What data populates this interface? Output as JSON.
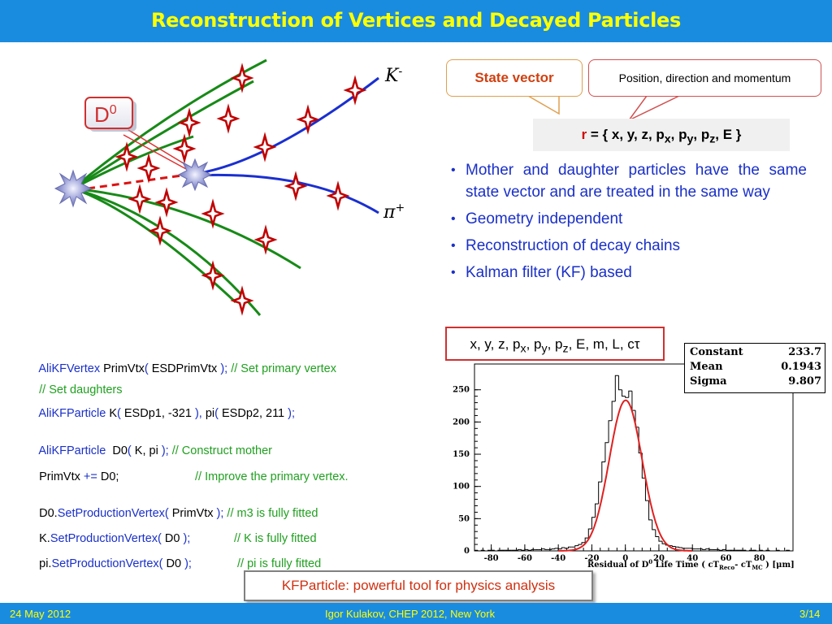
{
  "slide": {
    "title": "Reconstruction of Vertices and Decayed Particles",
    "footer": {
      "date": "24 May 2012",
      "author": "Igor Kulakov, CHEP 2012, New York",
      "page": "3/14"
    }
  },
  "diagram": {
    "mother_label": "D",
    "mother_label_sup": "0",
    "kaon_label": "K",
    "kaon_sup": "-",
    "pion_label": "π",
    "pion_sup": "+"
  },
  "callouts": {
    "state_vector": "State vector",
    "state_desc": "Position, direction and momentum"
  },
  "state_vector_formula": {
    "r": "r",
    "rest": " = { x, y, z, p",
    "px_sub": "x",
    "mid1": ", p",
    "py_sub": "y",
    "mid2": ", p",
    "pz_sub": "z",
    "end": ", E }"
  },
  "bullets": [
    "Mother and daughter particles have the same state vector and are treated in the same way",
    "Geometry independent",
    "Reconstruction of decay chains",
    "Kalman filter (KF) based"
  ],
  "params_box": {
    "a": "x, y, z, p",
    "px_sub": "x",
    "b": ", p",
    "py_sub": "y",
    "c": ", p",
    "pz_sub": "z",
    "d": ", E, m, L, cτ"
  },
  "code": [
    {
      "cls": "AliKFVertex",
      "t1": " PrimVtx",
      "p1": "( ",
      "t2": "ESDPrimVtx",
      "p2": " );",
      "comment": " // Set primary vertex"
    },
    {
      "comment": "// Set daughters"
    },
    {
      "cls": "AliKFParticle",
      "t1": " K",
      "p1": "( ",
      "t2": "ESDp1, -321",
      "p2": " ),",
      "t3": " pi",
      "p3": "( ",
      "t4": "ESDp2, 211",
      "p4": " );"
    },
    {
      "cls": "AliKFParticle",
      "t1": "  D0",
      "p1": "( ",
      "t2": "K, pi",
      "p2": " );",
      "comment": " // Construct mother"
    },
    {
      "t1": "PrimVtx",
      "op": " += ",
      "t2": "D0;",
      "comment": "// Improve the primary vertex."
    },
    {
      "t1": "D0.",
      "m": "SetProductionVertex(",
      "t2": " PrimVtx",
      "p2": " );",
      "comment": " // m3 is fully fitted"
    },
    {
      "t1": "K.",
      "m": "SetProductionVertex(",
      "t2": " D0",
      "p2": " );",
      "comment": "// K is fully fitted"
    },
    {
      "t1": "pi.",
      "m": "SetProductionVertex(",
      "t2": " D0",
      "p2": " );",
      "comment": "// pi is fully fitted"
    }
  ],
  "summary": "KFParticle: powerful tool for physics analysis",
  "fit_stats": [
    {
      "key": "Constant",
      "value": "233.7"
    },
    {
      "key": "Mean",
      "value": "0.1943"
    },
    {
      "key": "Sigma",
      "value": "9.807"
    }
  ],
  "chart_data": {
    "type": "bar",
    "xlabel": "Residual of D⁰ Life Time ( cT_Reco - cT_MC ) [μm]",
    "x_ticks": [
      "-80",
      "-60",
      "-40",
      "-20",
      "0",
      "20",
      "40",
      "60",
      "80"
    ],
    "y_ticks": [
      "0",
      "50",
      "100",
      "150",
      "200",
      "250"
    ],
    "xlim": [
      -90,
      100
    ],
    "ylim": [
      0,
      290
    ],
    "bin_width": 2,
    "bin_starts": [
      -90,
      -88,
      -86,
      -84,
      -82,
      -80,
      -78,
      -76,
      -74,
      -72,
      -70,
      -68,
      -66,
      -64,
      -62,
      -60,
      -58,
      -56,
      -54,
      -52,
      -50,
      -48,
      -46,
      -44,
      -42,
      -40,
      -38,
      -36,
      -34,
      -32,
      -30,
      -28,
      -26,
      -24,
      -22,
      -20,
      -18,
      -16,
      -14,
      -12,
      -10,
      -8,
      -6,
      -4,
      -2,
      0,
      2,
      4,
      6,
      8,
      10,
      12,
      14,
      16,
      18,
      20,
      22,
      24,
      26,
      28,
      30,
      32,
      34,
      36,
      38,
      40,
      42,
      44,
      46,
      48,
      50,
      52,
      54,
      56,
      58,
      60,
      62,
      64,
      66,
      68,
      70,
      72,
      74,
      76,
      78,
      80,
      82,
      84,
      86,
      88,
      90,
      92,
      94,
      96,
      98
    ],
    "values": [
      1,
      0,
      1,
      0,
      1,
      1,
      0,
      1,
      1,
      1,
      1,
      1,
      1,
      2,
      1,
      2,
      1,
      2,
      2,
      2,
      3,
      2,
      2,
      3,
      4,
      3,
      5,
      4,
      6,
      6,
      8,
      10,
      13,
      20,
      34,
      52,
      73,
      107,
      138,
      168,
      202,
      232,
      272,
      250,
      240,
      238,
      248,
      218,
      192,
      152,
      113,
      78,
      48,
      33,
      22,
      15,
      11,
      9,
      8,
      7,
      6,
      5,
      4,
      4,
      4,
      3,
      3,
      3,
      2,
      3,
      2,
      2,
      2,
      1,
      2,
      1,
      1,
      1,
      1,
      1,
      1,
      0,
      1,
      1,
      0,
      1,
      0,
      1,
      0,
      0,
      1,
      0,
      0,
      1,
      0
    ],
    "fit": {
      "function": "gaussian",
      "constant": 233.7,
      "mean": 0.1943,
      "sigma": 9.807
    },
    "colors": {
      "histogram": "#000000",
      "fit": "#e02020"
    }
  }
}
